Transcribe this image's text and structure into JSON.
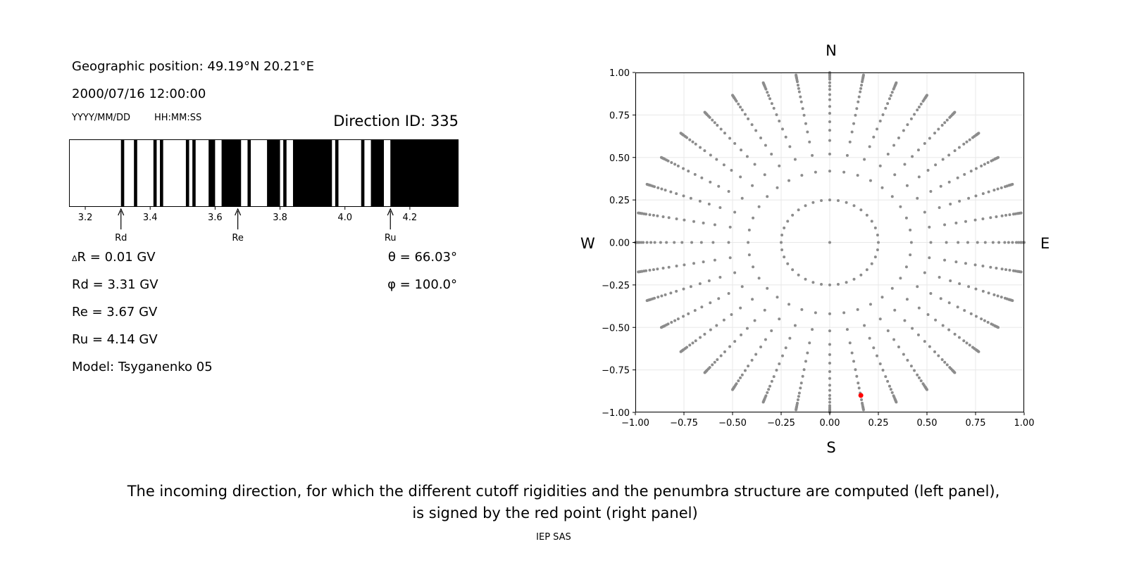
{
  "header": {
    "geo_position": "Geographic position: 49.19°N 20.21°E",
    "datetime": "2000/07/16 12:00:00",
    "date_format": "YYYY/MM/DD",
    "time_format": "HH:MM:SS",
    "direction_id": "Direction ID: 335"
  },
  "results": {
    "delta_r": "R = 0.01 GV",
    "delta_symbol": "Δ",
    "rd": "Rd = 3.31 GV",
    "re": "Re = 3.67 GV",
    "ru": "Ru = 4.14 GV",
    "model": "Model: Tsyganenko 05",
    "theta": "θ = 66.03°",
    "phi": "φ = 100.0°"
  },
  "chart_data": [
    {
      "type": "penumbra",
      "xlim": [
        3.15,
        4.35
      ],
      "xticks": [
        3.2,
        3.4,
        3.6,
        3.8,
        4.0,
        4.2
      ],
      "xtick_labels": [
        "3.2",
        "3.4",
        "3.6",
        "3.8",
        "4.0",
        "4.2"
      ],
      "forbidden_bands": [
        [
          3.31,
          3.32
        ],
        [
          3.35,
          3.36
        ],
        [
          3.41,
          3.42
        ],
        [
          3.43,
          3.44
        ],
        [
          3.51,
          3.52
        ],
        [
          3.53,
          3.54
        ],
        [
          3.58,
          3.6
        ],
        [
          3.62,
          3.68
        ],
        [
          3.7,
          3.71
        ],
        [
          3.76,
          3.8
        ],
        [
          3.81,
          3.82
        ],
        [
          3.84,
          3.96
        ],
        [
          3.97,
          3.98
        ],
        [
          4.05,
          4.06
        ],
        [
          4.08,
          4.12
        ],
        [
          4.14,
          4.35
        ]
      ],
      "markers": [
        {
          "label": "Rd",
          "value": 3.31
        },
        {
          "label": "Re",
          "value": 3.67
        },
        {
          "label": "Ru",
          "value": 4.14
        }
      ]
    },
    {
      "type": "scatter",
      "xlim": [
        -1.0,
        1.0
      ],
      "ylim": [
        -1.0,
        1.0
      ],
      "xticks": [
        -1.0,
        -0.75,
        -0.5,
        -0.25,
        0.0,
        0.25,
        0.5,
        0.75,
        1.0
      ],
      "yticks": [
        -1.0,
        -0.75,
        -0.5,
        -0.25,
        0.0,
        0.25,
        0.5,
        0.75,
        1.0
      ],
      "xtick_labels": [
        "−1.00",
        "−0.75",
        "−0.50",
        "−0.25",
        "0.00",
        "0.25",
        "0.50",
        "0.75",
        "1.00"
      ],
      "ytick_labels": [
        "−1.00",
        "−0.75",
        "−0.50",
        "−0.25",
        "0.00",
        "0.25",
        "0.50",
        "0.75",
        "1.00"
      ],
      "grid": true,
      "compass": {
        "north": "N",
        "south": "S",
        "west": "W",
        "east": "E"
      },
      "grid_points": {
        "description": "sky projection of directions: center point, zenith ring, and rays every 10 degrees azimuth",
        "center": [
          0.0,
          0.0
        ],
        "ring_radius": 0.25,
        "ring_points": 36,
        "ray_azimuth_step_deg": 10,
        "ray_radii": [
          0.42,
          0.52,
          0.6,
          0.66,
          0.71,
          0.76,
          0.8,
          0.84,
          0.87,
          0.9,
          0.92,
          0.94,
          0.96,
          0.97,
          0.98,
          0.985,
          0.99,
          0.995,
          1.0
        ],
        "color": "#8c8c8c"
      },
      "highlight": {
        "x": 0.16,
        "y": -0.9,
        "color": "#ff0000"
      }
    }
  ],
  "caption": {
    "line1": "The incoming direction, for which the different cutoff rigidities and the penumbra structure are computed (left panel),",
    "line2": "is signed by the red point (right panel)",
    "credit": "IEP SAS"
  }
}
